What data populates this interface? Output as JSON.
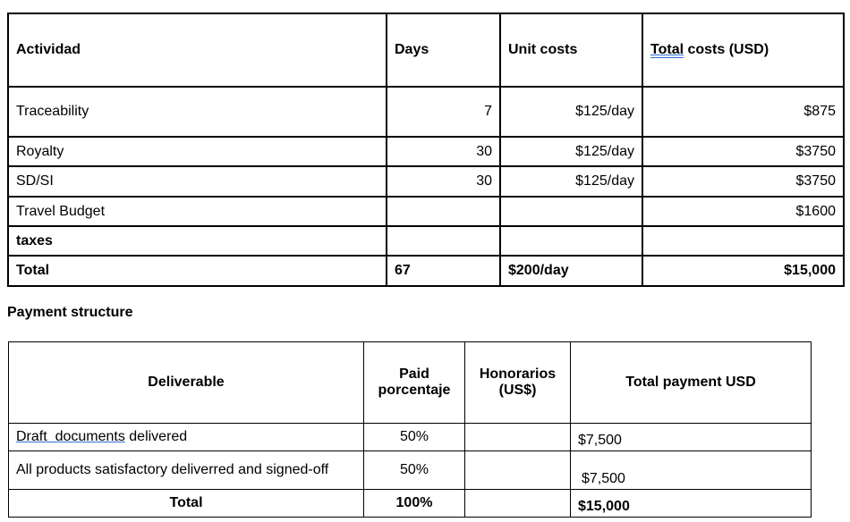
{
  "cost_table": {
    "headers": [
      "Actividad",
      "Days",
      "Unit costs",
      "Total costs (USD)"
    ],
    "header_underlined_word": "Total",
    "header_rest": " costs (USD)",
    "rows": [
      {
        "activity": "Traceability",
        "days": "7",
        "unit_cost": "$125/day",
        "total": "$875"
      },
      {
        "activity": "Royalty",
        "days": "30",
        "unit_cost": "$125/day",
        "total": "$3750"
      },
      {
        "activity": "SD/SI",
        "days": "30",
        "unit_cost": "$125/day",
        "total": "$3750"
      },
      {
        "activity": "Travel Budget",
        "days": "",
        "unit_cost": "",
        "total": "$1600"
      },
      {
        "activity": "taxes",
        "days": "",
        "unit_cost": "",
        "total": ""
      }
    ],
    "total": {
      "label": "Total",
      "days": "67",
      "unit_cost": "$200/day",
      "total": "$15,000"
    }
  },
  "payment_title": "Payment structure",
  "payment_table": {
    "headers": [
      "Deliverable",
      "Paid porcentaje",
      "Honorarios (US$)",
      "Total payment USD"
    ],
    "rows": [
      {
        "deliverable_underlined": "Draft  documents",
        "deliverable_rest": " delivered",
        "paid": "50%",
        "fees": "",
        "total": "$7,500"
      },
      {
        "deliverable": "All products satisfactory deliverred and signed-off",
        "paid": "50%",
        "fees": "",
        "total": "$7,500"
      }
    ],
    "total": {
      "label": "Total",
      "paid": "100%",
      "fees": "",
      "total": "$15,000"
    }
  }
}
